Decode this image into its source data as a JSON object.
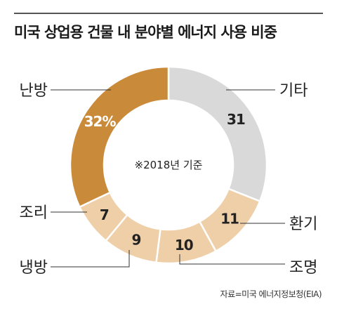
{
  "header": {
    "title": "미국 상업용 건물 내 분야별 에너지 사용 비중"
  },
  "chart_data": {
    "type": "pie",
    "style": "donut",
    "center_text": "※2018년 기준",
    "slices": [
      {
        "label": "기타",
        "value": 31,
        "value_label": "31",
        "color": "#d9d9d9",
        "text_color": "#222222"
      },
      {
        "label": "환기",
        "value": 11,
        "value_label": "11",
        "color": "#eecfa8",
        "text_color": "#222222"
      },
      {
        "label": "조명",
        "value": 10,
        "value_label": "10",
        "color": "#eecfa8",
        "text_color": "#222222"
      },
      {
        "label": "냉방",
        "value": 9,
        "value_label": "9",
        "color": "#eecfa8",
        "text_color": "#222222"
      },
      {
        "label": "조리",
        "value": 7,
        "value_label": "7",
        "color": "#eecfa8",
        "text_color": "#222222"
      },
      {
        "label": "난방",
        "value": 32,
        "value_label": "32%",
        "color": "#c98a3a",
        "text_color": "#ffffff"
      }
    ]
  },
  "footer": {
    "source": "자료=미국 에너지정보청(EIA)"
  }
}
